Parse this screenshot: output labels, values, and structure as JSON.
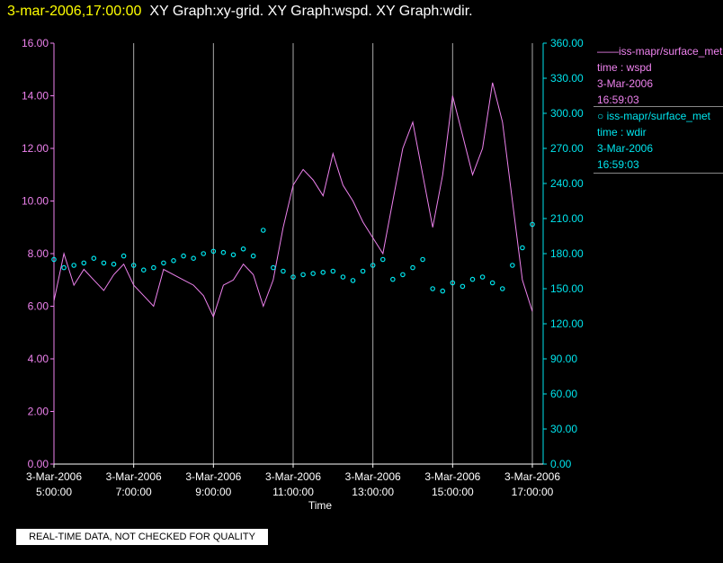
{
  "header": {
    "timestamp": "3-mar-2006,17:00:00",
    "titles": "XY Graph:xy-grid.  XY Graph:wspd.  XY Graph:wdir."
  },
  "legend": [
    {
      "series": "——iss-mapr/surface_met",
      "var": "time : wspd",
      "date": "3-Mar-2006",
      "time": "16:59:03"
    },
    {
      "series": "○  iss-mapr/surface_met",
      "var": "time : wdir",
      "date": "3-Mar-2006",
      "time": "16:59:03"
    }
  ],
  "notice": "REAL-TIME DATA, NOT CHECKED FOR QUALITY",
  "colors": {
    "wspd": "#ee82ee",
    "wdir": "#00e5ee",
    "grid": "#aaaaaa",
    "axis": "#ffffff"
  },
  "chart_data": {
    "type": "line",
    "xlabel": "Time",
    "x_range": [
      "3-Mar-2006 05:00:00",
      "3-Mar-2006 17:00:00"
    ],
    "x_ticks": [
      {
        "date": "3-Mar-2006",
        "time": "5:00:00"
      },
      {
        "date": "3-Mar-2006",
        "time": "7:00:00"
      },
      {
        "date": "3-Mar-2006",
        "time": "9:00:00"
      },
      {
        "date": "3-Mar-2006",
        "time": "11:00:00"
      },
      {
        "date": "3-Mar-2006",
        "time": "13:00:00"
      },
      {
        "date": "3-Mar-2006",
        "time": "15:00:00"
      },
      {
        "date": "3-Mar-2006",
        "time": "17:00:00"
      }
    ],
    "y_left": {
      "range": [
        0,
        16
      ],
      "ticks": [
        "0.00",
        "2.00",
        "4.00",
        "6.00",
        "8.00",
        "10.00",
        "12.00",
        "14.00",
        "16.00"
      ]
    },
    "y_right": {
      "range": [
        0,
        360
      ],
      "ticks": [
        "0.00",
        "30.00",
        "60.00",
        "90.00",
        "120.00",
        "150.00",
        "180.00",
        "210.00",
        "240.00",
        "270.00",
        "300.00",
        "330.00",
        "360.00"
      ]
    },
    "grid": "vertical",
    "series": [
      {
        "axis": "left",
        "style": "line",
        "color": "wspd",
        "x": [
          "05:00",
          "05:15",
          "05:30",
          "05:45",
          "06:00",
          "06:15",
          "06:30",
          "06:45",
          "07:00",
          "07:15",
          "07:30",
          "07:45",
          "08:00",
          "08:15",
          "08:30",
          "08:45",
          "09:00",
          "09:15",
          "09:30",
          "09:45",
          "10:00",
          "10:15",
          "10:30",
          "10:45",
          "11:00",
          "11:15",
          "11:30",
          "11:45",
          "12:00",
          "12:15",
          "12:30",
          "12:45",
          "13:00",
          "13:15",
          "13:30",
          "13:45",
          "14:00",
          "14:15",
          "14:30",
          "14:45",
          "15:00",
          "15:15",
          "15:30",
          "15:45",
          "16:00",
          "16:15",
          "16:30",
          "16:45",
          "17:00"
        ],
        "y": [
          6.2,
          8.0,
          6.8,
          7.4,
          7.0,
          6.6,
          7.2,
          7.6,
          6.8,
          6.4,
          6.0,
          7.4,
          7.2,
          7.0,
          6.8,
          6.4,
          5.6,
          6.8,
          7.0,
          7.6,
          7.2,
          6.0,
          7.0,
          9.0,
          10.6,
          11.2,
          10.8,
          10.2,
          11.8,
          10.6,
          10.0,
          9.2,
          8.6,
          8.0,
          10.0,
          12.0,
          13.0,
          11.0,
          9.0,
          11.0,
          14.0,
          12.5,
          11.0,
          12.0,
          14.5,
          13.0,
          10.0,
          7.0,
          5.8
        ]
      },
      {
        "axis": "right",
        "style": "markers",
        "color": "wdir",
        "x": [
          "05:00",
          "05:15",
          "05:30",
          "05:45",
          "06:00",
          "06:15",
          "06:30",
          "06:45",
          "07:00",
          "07:15",
          "07:30",
          "07:45",
          "08:00",
          "08:15",
          "08:30",
          "08:45",
          "09:00",
          "09:15",
          "09:30",
          "09:45",
          "10:00",
          "10:15",
          "10:30",
          "10:45",
          "11:00",
          "11:15",
          "11:30",
          "11:45",
          "12:00",
          "12:15",
          "12:30",
          "12:45",
          "13:00",
          "13:15",
          "13:30",
          "13:45",
          "14:00",
          "14:15",
          "14:30",
          "14:45",
          "15:00",
          "15:15",
          "15:30",
          "15:45",
          "16:00",
          "16:15",
          "16:30",
          "16:45",
          "17:00"
        ],
        "y": [
          175,
          168,
          170,
          172,
          176,
          172,
          171,
          178,
          170,
          166,
          168,
          172,
          174,
          178,
          176,
          180,
          182,
          181,
          179,
          184,
          178,
          200,
          168,
          165,
          160,
          162,
          163,
          164,
          165,
          160,
          157,
          165,
          170,
          175,
          158,
          162,
          168,
          175,
          150,
          148,
          155,
          152,
          158,
          160,
          155,
          150,
          170,
          185,
          205
        ]
      }
    ]
  }
}
